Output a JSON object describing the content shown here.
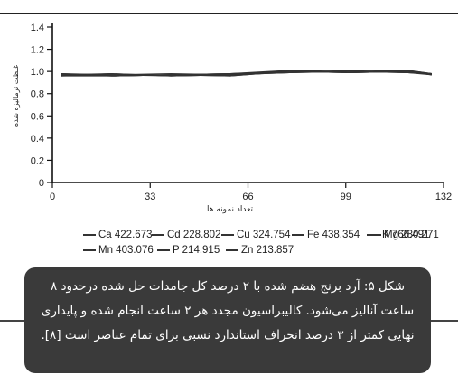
{
  "chart_data": {
    "type": "line",
    "title": "",
    "xlabel": "تعداد نمونه ها",
    "ylabel": "غلظت نرمالیزه شده",
    "xlim": [
      0,
      132
    ],
    "ylim": [
      0,
      1.4
    ],
    "xticks": [
      0,
      33,
      66,
      99,
      132
    ],
    "yticks": [
      0,
      0.2,
      0.4,
      0.6,
      0.8,
      1.0,
      1.2,
      1.4
    ],
    "ytick_labels": [
      "0",
      "0.2",
      "0.4",
      "0.6",
      "0.8",
      "1.0",
      "1.2",
      "1.4"
    ],
    "grid": false,
    "legend_position": "bottom",
    "series": [
      {
        "name": "Ca 422.673",
        "x": [
          3,
          20,
          40,
          60,
          80,
          100,
          120,
          128
        ],
        "values": [
          0.97,
          0.96,
          0.97,
          0.98,
          1.0,
          0.99,
          1.0,
          0.98
        ]
      },
      {
        "name": "Cd 228.802",
        "x": [
          3,
          20,
          40,
          60,
          80,
          100,
          120,
          128
        ],
        "values": [
          0.96,
          0.97,
          0.96,
          0.97,
          0.99,
          1.0,
          0.99,
          0.97
        ]
      },
      {
        "name": "Cu 324.754",
        "x": [
          3,
          20,
          40,
          60,
          80,
          100,
          120,
          128
        ],
        "values": [
          0.97,
          0.96,
          0.97,
          0.96,
          1.0,
          0.99,
          1.01,
          0.98
        ]
      },
      {
        "name": "Fe 438.354",
        "x": [
          3,
          20,
          40,
          60,
          80,
          100,
          120,
          128
        ],
        "values": [
          0.98,
          0.97,
          0.97,
          0.98,
          1.01,
          1.0,
          1.0,
          0.97
        ]
      },
      {
        "name": "K 766.491",
        "x": [
          3,
          20,
          40,
          60,
          80,
          100,
          120,
          128
        ],
        "values": [
          0.96,
          0.98,
          0.96,
          0.97,
          0.99,
          1.01,
          0.99,
          0.98
        ]
      },
      {
        "name": "Mg 280.271",
        "x": [
          3,
          20,
          40,
          60,
          80,
          100,
          120,
          128
        ],
        "values": [
          0.97,
          0.97,
          0.98,
          0.97,
          1.0,
          0.99,
          1.0,
          0.97
        ]
      },
      {
        "name": "Mn 403.076",
        "x": [
          3,
          20,
          40,
          60,
          80,
          100,
          120,
          128
        ],
        "values": [
          0.96,
          0.96,
          0.97,
          0.98,
          0.99,
          1.0,
          1.01,
          0.98
        ]
      },
      {
        "name": "P 214.915",
        "x": [
          3,
          20,
          40,
          60,
          80,
          100,
          120,
          128
        ],
        "values": [
          0.97,
          0.98,
          0.96,
          0.97,
          1.01,
          0.99,
          1.0,
          0.97
        ]
      },
      {
        "name": "Zn 213.857",
        "x": [
          3,
          20,
          40,
          60,
          80,
          100,
          120,
          128
        ],
        "values": [
          0.98,
          0.96,
          0.97,
          0.96,
          1.0,
          1.0,
          0.99,
          0.98
        ]
      }
    ]
  },
  "caption": {
    "text": "شکل ۵: آرد برنج هضم شده با ۲ درصد کل جامدات حل شده درحدود ۸ ساعت آنالیز می‌شود. کالیبراسیون مجدد هر ۲ ساعت انجام شده و پایداری نهایی کمتر از ۳ درصد انحراف استاندارد نسبی برای تمام عناصر است [۸]."
  },
  "colors": {
    "line": "#333333",
    "axis": "#111111",
    "caption_background": "#3a3a3a",
    "caption_text": "#ffffff"
  }
}
